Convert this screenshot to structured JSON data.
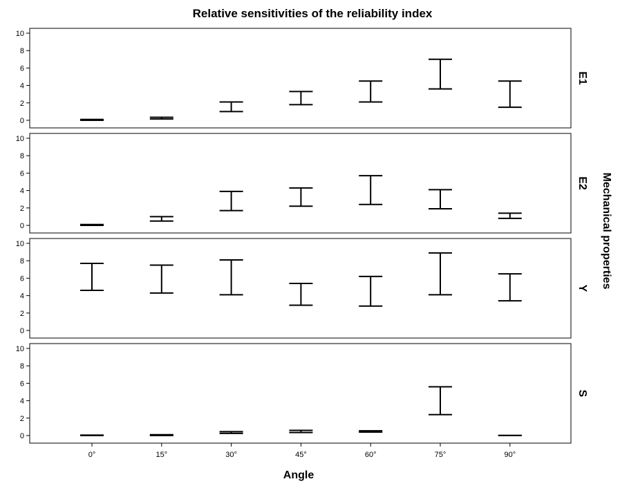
{
  "chart_data": {
    "type": "errorbar",
    "title": "Relative sensitivities of the reliability index",
    "xlabel": "Angle",
    "ylabel": "Mechanical properties",
    "categories": [
      "0°",
      "15°",
      "30°",
      "45°",
      "60°",
      "75°",
      "90°"
    ],
    "ylim": [
      0,
      10
    ],
    "yticks": [
      "0",
      "2",
      "4",
      "6",
      "8",
      "10"
    ],
    "grid": false,
    "panels": [
      {
        "name": "E1",
        "low": [
          0.0,
          0.15,
          1.0,
          1.8,
          2.1,
          3.6,
          1.5
        ],
        "high": [
          0.1,
          0.35,
          2.1,
          3.3,
          4.5,
          7.0,
          4.5
        ]
      },
      {
        "name": "E2",
        "low": [
          0.0,
          0.5,
          1.7,
          2.2,
          2.4,
          1.9,
          0.8
        ],
        "high": [
          0.1,
          1.0,
          3.9,
          4.3,
          5.7,
          4.1,
          1.4
        ]
      },
      {
        "name": "Y",
        "low": [
          4.6,
          4.3,
          4.1,
          2.9,
          2.8,
          4.1,
          3.4
        ],
        "high": [
          7.7,
          7.5,
          8.1,
          5.4,
          6.2,
          8.9,
          6.5
        ]
      },
      {
        "name": "S",
        "low": [
          0.0,
          0.0,
          0.25,
          0.35,
          0.4,
          2.4,
          0.0
        ],
        "high": [
          0.05,
          0.1,
          0.45,
          0.6,
          0.55,
          5.6,
          0.02
        ]
      }
    ]
  }
}
